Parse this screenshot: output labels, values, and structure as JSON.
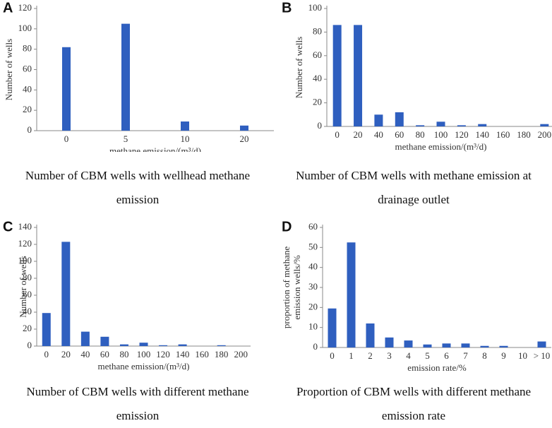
{
  "chart_data": [
    {
      "type": "bar",
      "panel": "A",
      "ylabel": "Number of wells",
      "xlabel": "methane emission/(m³/d)",
      "categories": [
        "0",
        "5",
        "10",
        "20"
      ],
      "values": [
        82,
        105,
        9,
        5
      ],
      "color": "#2f5fbf",
      "ylim": [
        0,
        120
      ],
      "yticks": [
        0,
        20,
        40,
        60,
        80,
        100,
        120
      ],
      "caption": "Number of CBM wells with wellhead methane emission"
    },
    {
      "type": "bar",
      "panel": "B",
      "ylabel": "Number of wells",
      "xlabel": "methane emission/(m³/d)",
      "categories": [
        "0",
        "20",
        "40",
        "60",
        "80",
        "100",
        "120",
        "140",
        "160",
        "180",
        "200"
      ],
      "values": [
        86,
        86,
        10,
        12,
        1,
        4,
        1,
        2,
        0,
        0,
        2
      ],
      "color": "#2f5fbf",
      "ylim": [
        0,
        100
      ],
      "yticks": [
        0,
        20,
        40,
        60,
        80,
        100
      ],
      "caption": "Number of CBM wells with methane emission at drainage outlet"
    },
    {
      "type": "bar",
      "panel": "C",
      "ylabel": "Number of wells",
      "xlabel": "methane emission/(m³/d)",
      "categories": [
        "0",
        "20",
        "40",
        "60",
        "80",
        "100",
        "120",
        "140",
        "160",
        "180",
        "200"
      ],
      "values": [
        39,
        123,
        17,
        11,
        2,
        4,
        1,
        2,
        0,
        1,
        0
      ],
      "color": "#2f5fbf",
      "ylim": [
        0,
        140
      ],
      "yticks": [
        0,
        20,
        40,
        60,
        80,
        100,
        120,
        140
      ],
      "caption": "Number of CBM wells with different methane emission"
    },
    {
      "type": "bar",
      "panel": "D",
      "ylabel": [
        "proportion of methane",
        "emission wells/%"
      ],
      "xlabel": "emission rate/%",
      "categories": [
        "0",
        "1",
        "2",
        "3",
        "4",
        "5",
        "6",
        "7",
        "8",
        "9",
        "10",
        "> 10"
      ],
      "values": [
        19.5,
        52.5,
        12,
        5,
        3.5,
        1.5,
        2,
        2,
        0.8,
        0.8,
        0,
        3
      ],
      "color": "#2f5fbf",
      "ylim": [
        0,
        60
      ],
      "yticks": [
        0,
        10,
        20,
        30,
        40,
        50,
        60
      ],
      "caption": "Proportion of CBM wells with different methane emission rate"
    }
  ]
}
